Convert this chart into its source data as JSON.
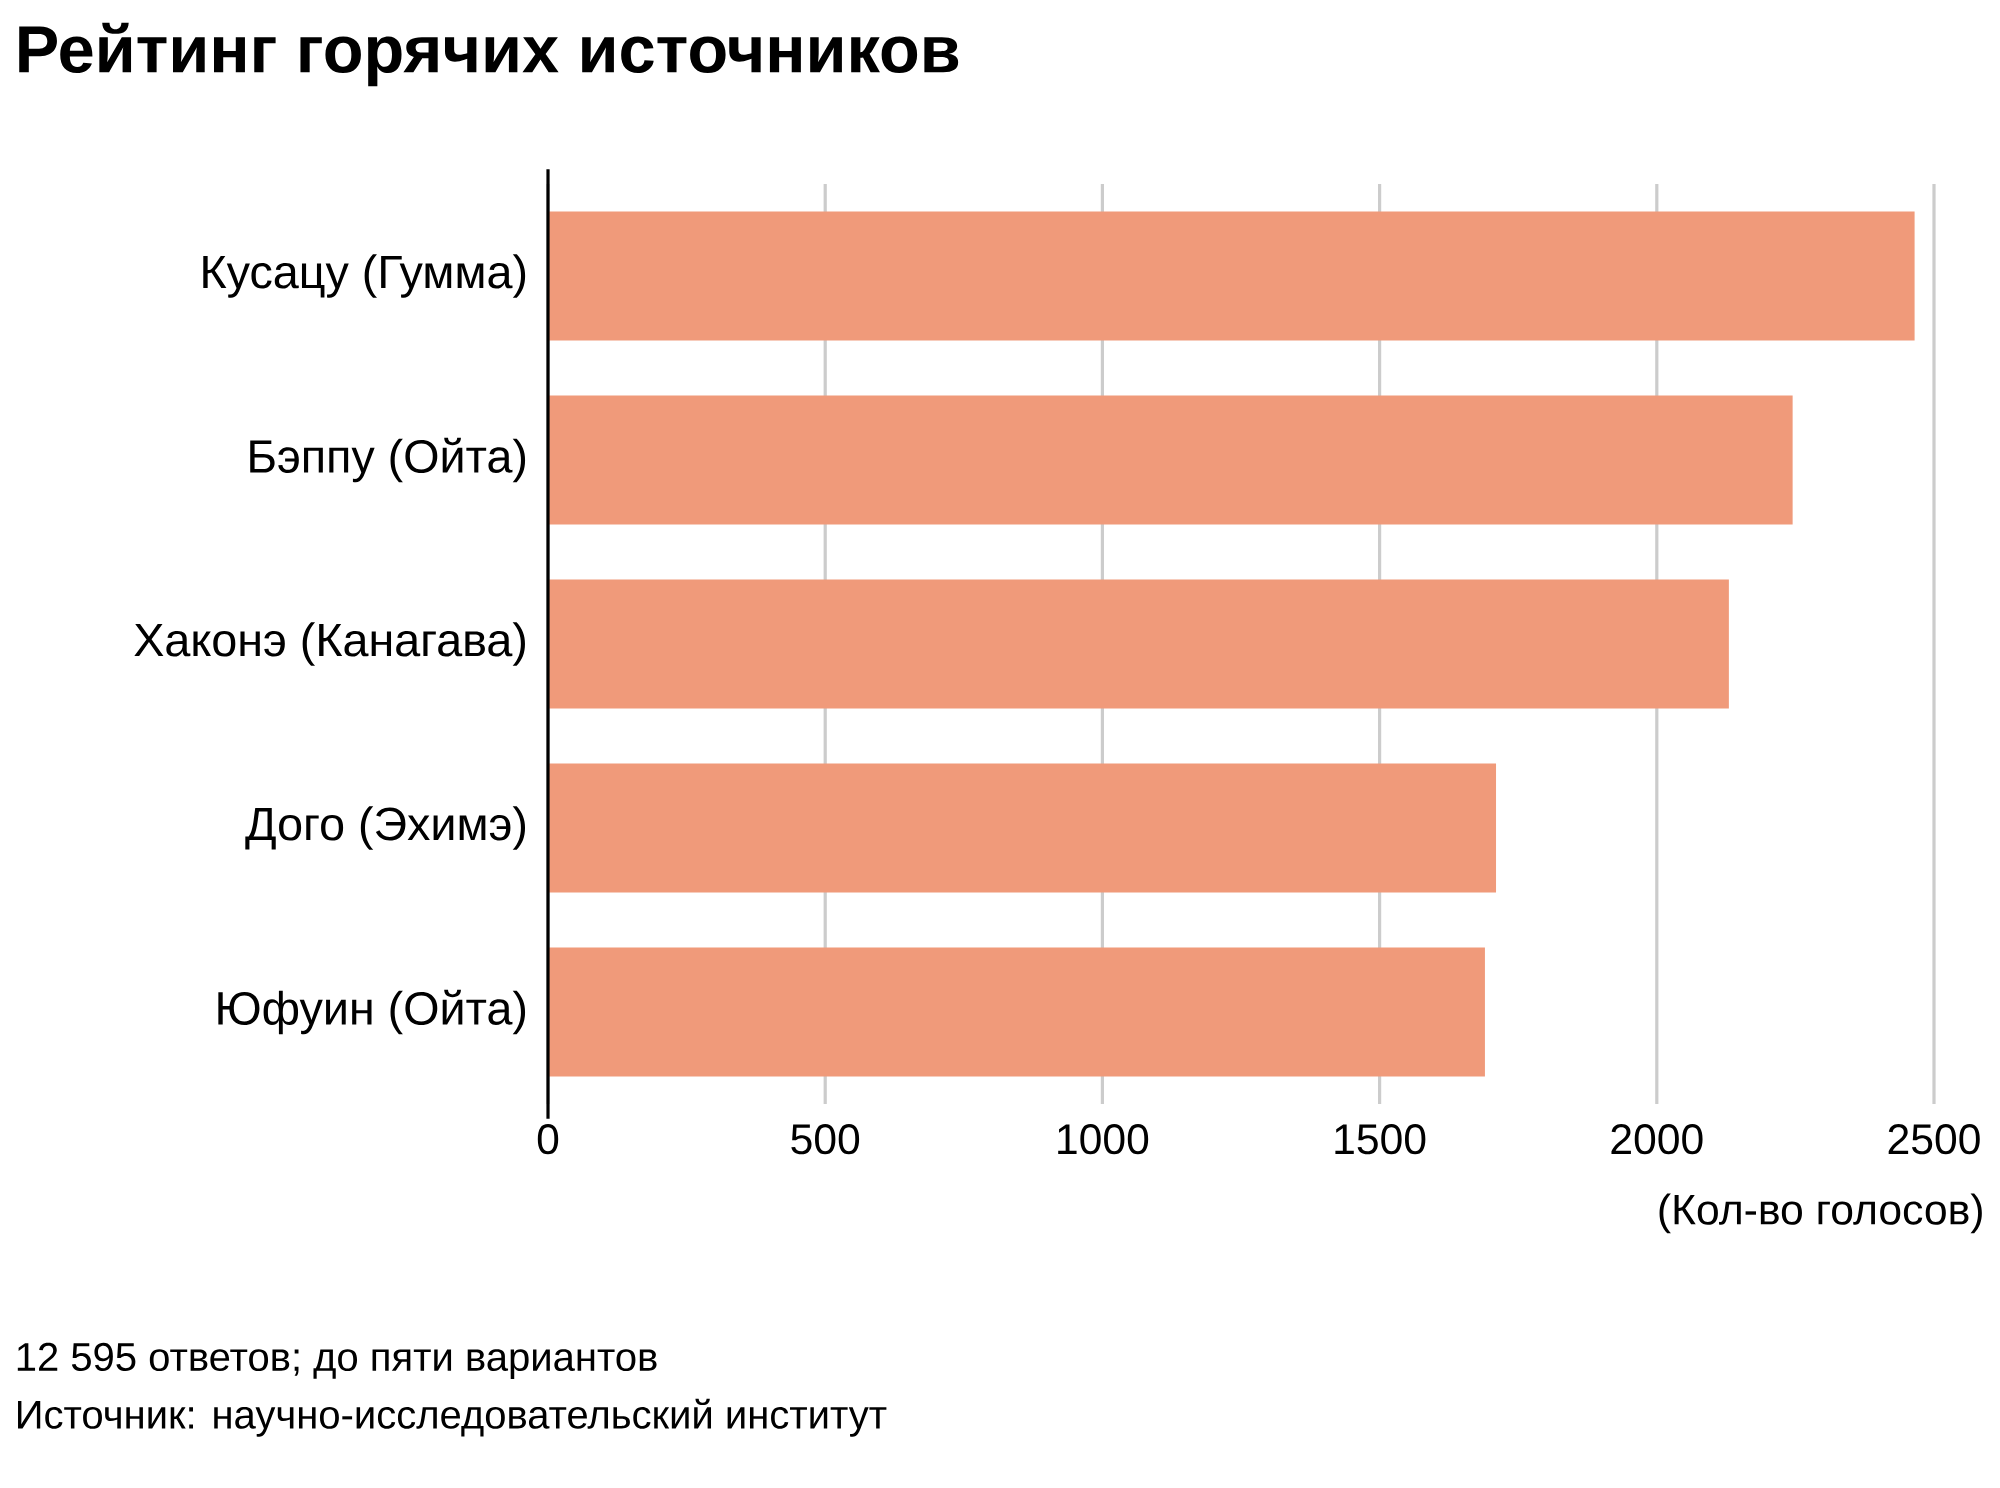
{
  "chart_data": {
    "type": "bar",
    "orientation": "horizontal",
    "title": "Рейтинг горячих источников",
    "categories": [
      "Кусацу (Гумма)",
      "Бэппу (Ойта)",
      "Хаконэ (Канагава)",
      "Дого (Эхимэ)",
      "Юфуин (Ойта)"
    ],
    "values": [
      2465,
      2245,
      2130,
      1710,
      1690
    ],
    "color": "#f09a7a",
    "xlim": [
      0,
      2500
    ],
    "xticks": [
      0,
      500,
      1000,
      1500,
      2000,
      2500
    ],
    "xlabel": "(Кол-во голосов)",
    "grid": "x",
    "annotations": [
      "12 595 ответов; до пяти вариантов",
      "Источник: научно-исследовательский институт"
    ]
  }
}
